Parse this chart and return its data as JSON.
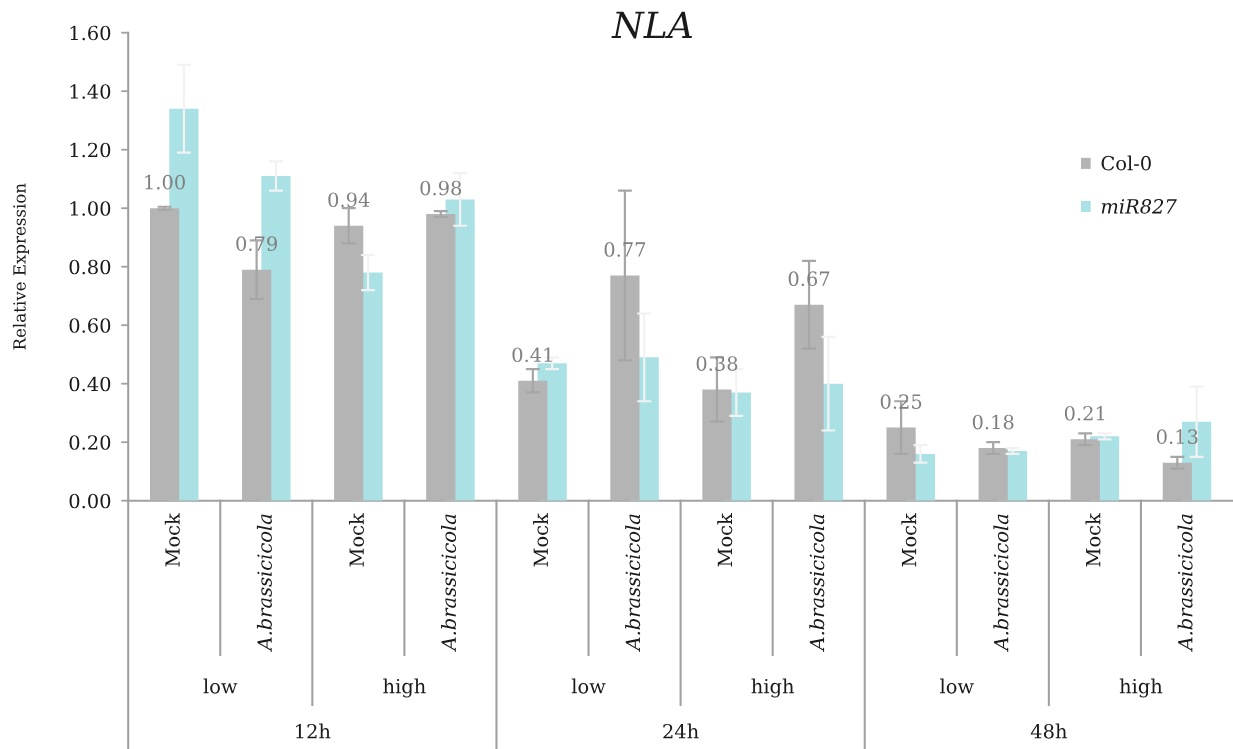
{
  "chart_data": {
    "type": "bar",
    "title": "NLA",
    "ylabel": "Relative Expression",
    "categories": [
      "Mock",
      "A.brassicicola",
      "Mock",
      "A.brassicicola",
      "Mock",
      "A.brassicicola",
      "Mock",
      "A.brassicicola",
      "Mock",
      "A.brassicicola",
      "Mock",
      "A.brassicicola"
    ],
    "series": [
      {
        "name": "Col-0",
        "color": "#b4b4b4",
        "values": [
          1.0,
          0.79,
          0.94,
          0.98,
          0.41,
          0.77,
          0.38,
          0.67,
          0.25,
          0.18,
          0.21,
          0.13
        ],
        "errors": [
          0.005,
          0.1,
          0.06,
          0.01,
          0.04,
          0.29,
          0.11,
          0.15,
          0.09,
          0.02,
          0.02,
          0.02
        ],
        "value_labels": [
          "1.00",
          "0.79",
          "0.94",
          "0.98",
          "0.41",
          "0.77",
          "0.38",
          "0.67",
          "0.25",
          "0.18",
          "0.21",
          "0.13"
        ]
      },
      {
        "name": "miR827",
        "color": "#a9e1e4",
        "values": [
          1.34,
          1.11,
          0.78,
          1.03,
          0.47,
          0.49,
          0.37,
          0.4,
          0.16,
          0.17,
          0.22,
          0.27
        ],
        "errors": [
          0.15,
          0.05,
          0.06,
          0.09,
          0.02,
          0.15,
          0.08,
          0.16,
          0.03,
          0.01,
          0.01,
          0.12
        ]
      }
    ],
    "ylim": [
      0,
      1.6
    ],
    "yticks": [
      {
        "value": 0,
        "label": "0.00"
      },
      {
        "value": 0.2,
        "label": "0.20"
      },
      {
        "value": 0.4,
        "label": "0.40"
      },
      {
        "value": 0.6,
        "label": "0.60"
      },
      {
        "value": 0.8,
        "label": "0.80"
      },
      {
        "value": 1.0,
        "label": "1.00"
      },
      {
        "value": 1.2,
        "label": "1.20"
      },
      {
        "value": 1.4,
        "label": "1.40"
      },
      {
        "value": 1.6,
        "label": "1.60"
      }
    ],
    "legend": "top right",
    "annotations": [
      "low",
      "high",
      "low",
      "high",
      "low",
      "high",
      "12h",
      "24h",
      "48h"
    ]
  }
}
